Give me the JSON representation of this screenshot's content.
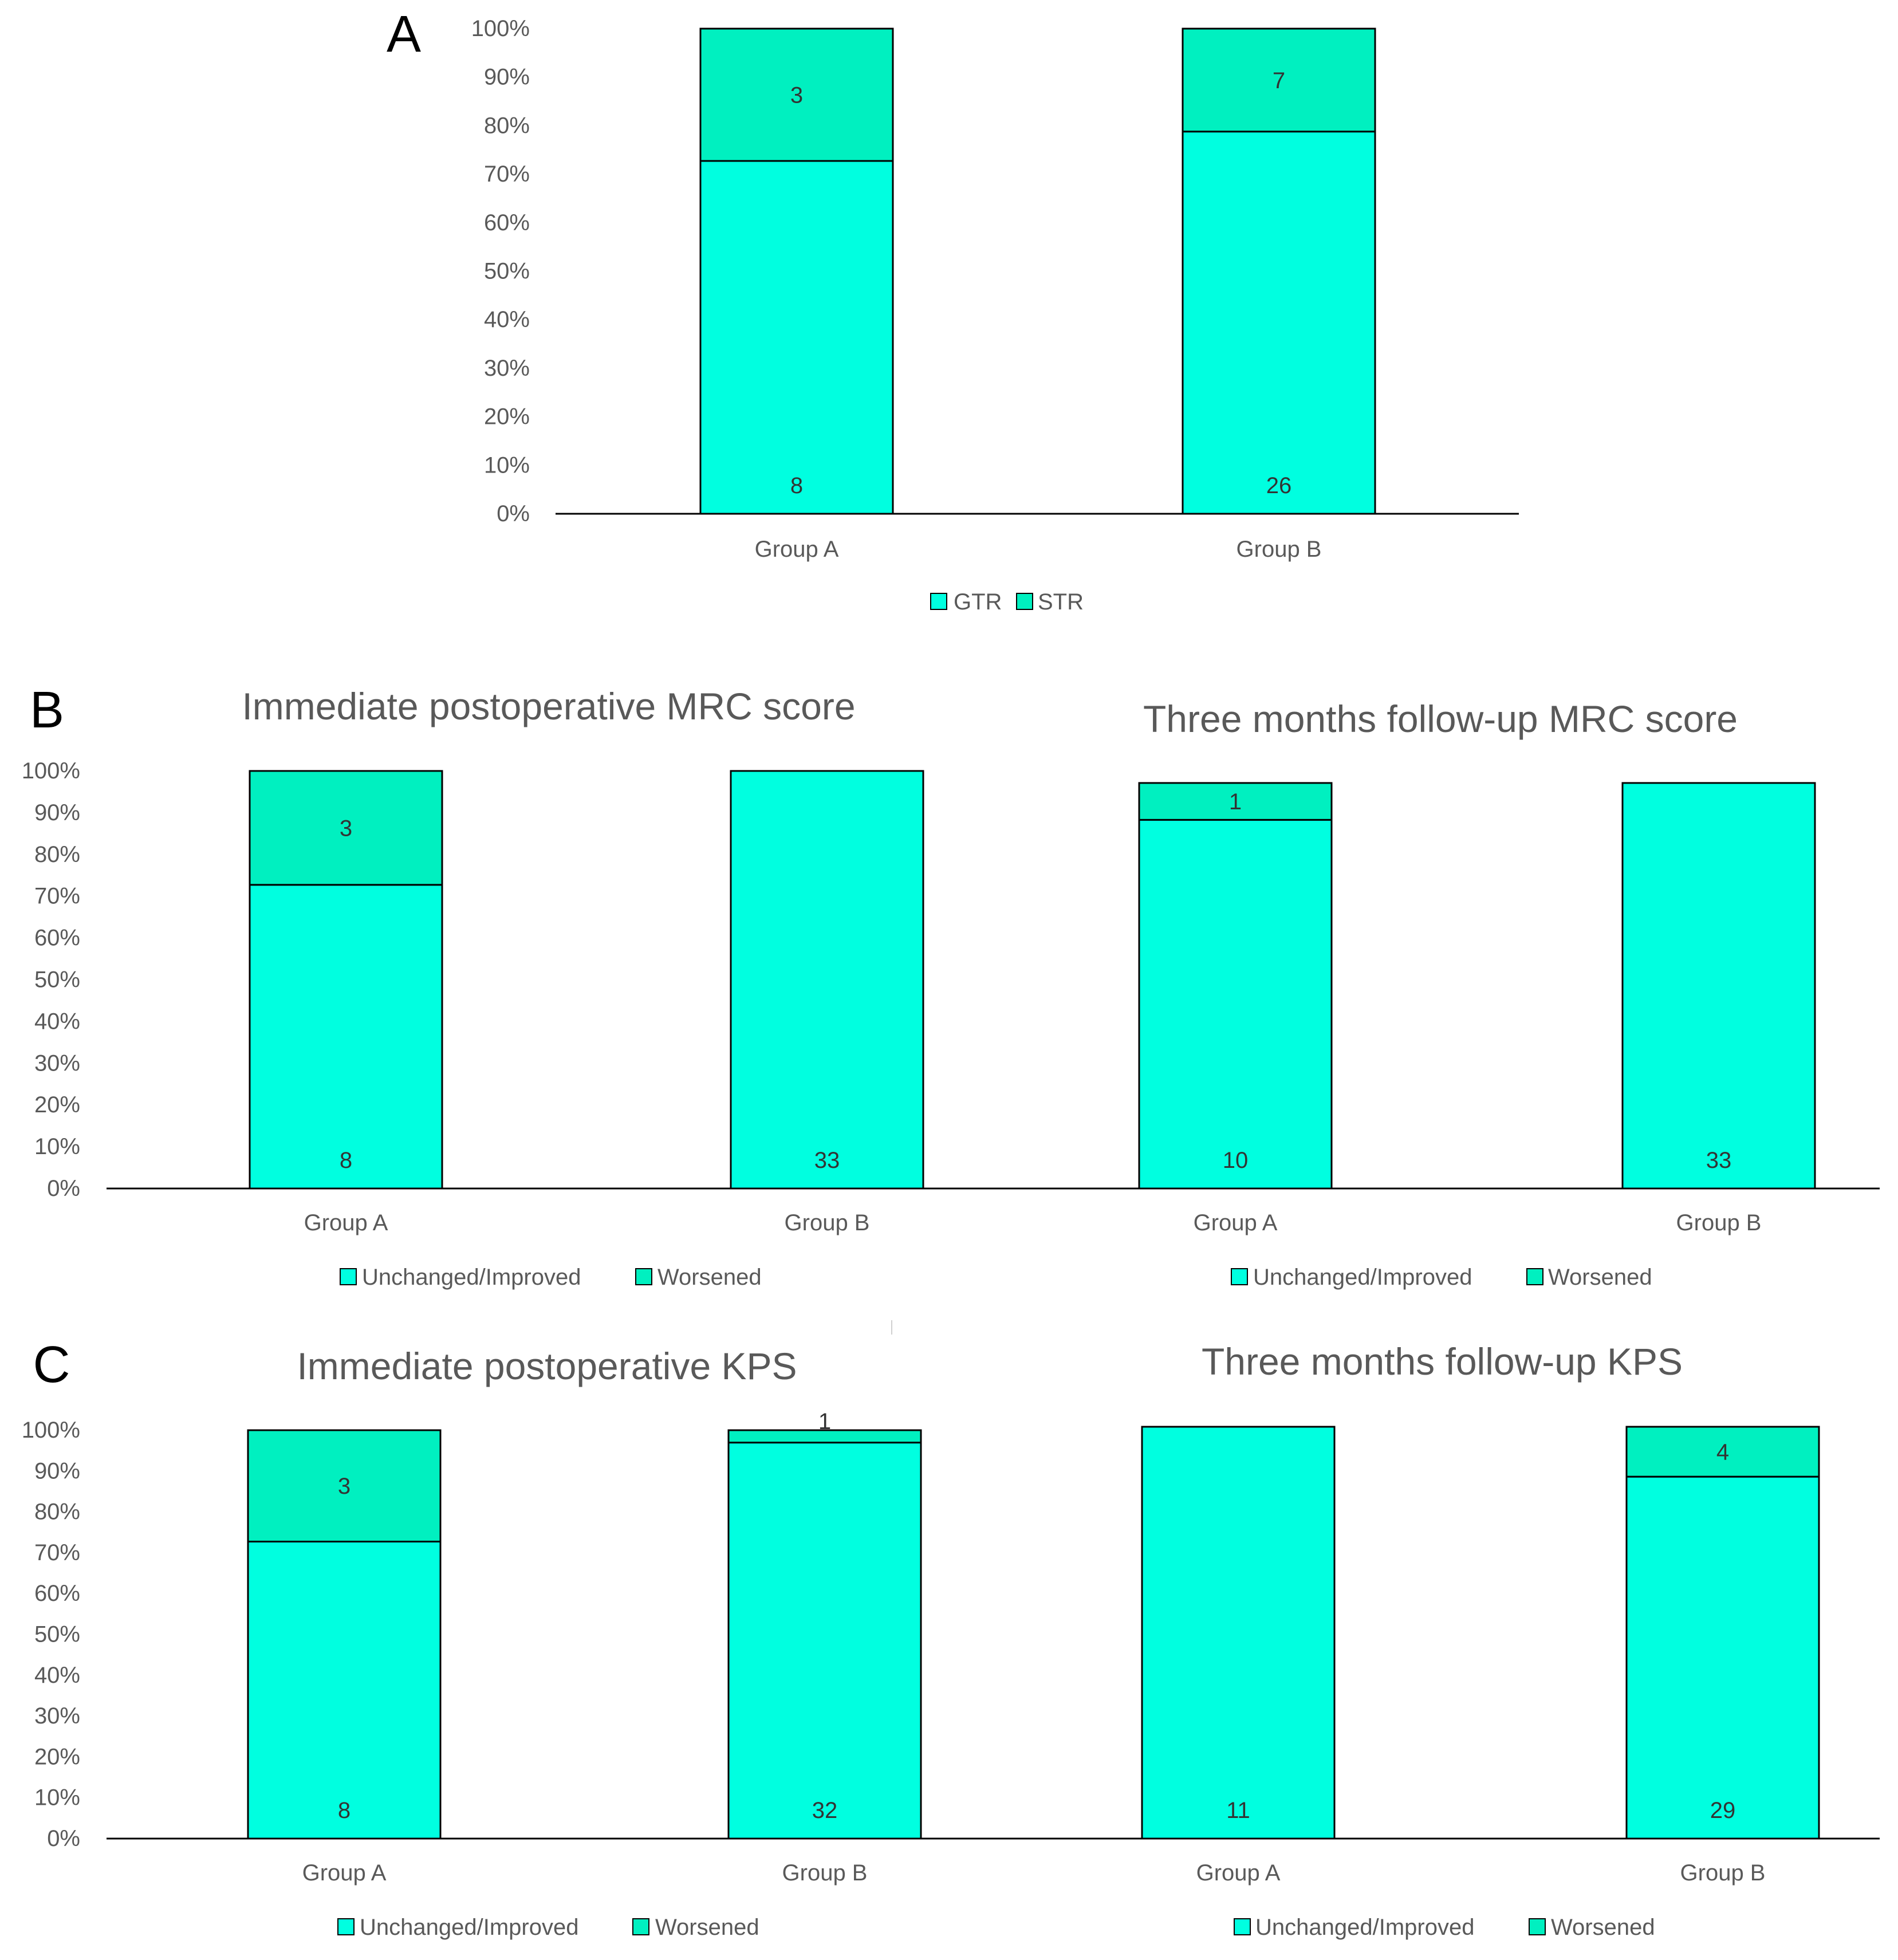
{
  "colors": {
    "primary": "#00ffe0",
    "secondary": "#00f0c0",
    "outline": "#000000",
    "axis": "#000000",
    "text": "#595959"
  },
  "chart_data": [
    {
      "panel": "A",
      "type": "bar",
      "stacked": true,
      "percent": true,
      "title": "",
      "categories": [
        "Group A",
        "Group B"
      ],
      "series": [
        {
          "name": "GTR",
          "values": [
            8,
            26
          ]
        },
        {
          "name": "STR",
          "values": [
            3,
            7
          ]
        }
      ],
      "labels": [
        [
          "8",
          "26"
        ],
        [
          "3",
          "7"
        ]
      ],
      "yticks": [
        "0%",
        "10%",
        "20%",
        "30%",
        "40%",
        "50%",
        "60%",
        "70%",
        "80%",
        "90%",
        "100%"
      ],
      "ylim": [
        0,
        100
      ],
      "legend": "bottom-center",
      "grid": false
    },
    {
      "panel": "B",
      "type": "bar",
      "stacked": true,
      "percent": true,
      "title": "Immediate postoperative MRC score",
      "categories": [
        "Group A",
        "Group B"
      ],
      "series": [
        {
          "name": "Unchanged/Improved",
          "values": [
            8,
            33
          ]
        },
        {
          "name": "Worsened",
          "values": [
            3,
            0
          ]
        }
      ],
      "labels": [
        [
          "8",
          "33"
        ],
        [
          "3",
          ""
        ]
      ],
      "yticks": [
        "0%",
        "10%",
        "20%",
        "30%",
        "40%",
        "50%",
        "60%",
        "70%",
        "80%",
        "90%",
        "100%"
      ],
      "ylim": [
        0,
        100
      ],
      "legend": "bottom-center",
      "grid": false
    },
    {
      "panel": "",
      "type": "bar",
      "stacked": true,
      "percent": true,
      "title": "Three months follow-up MRC score",
      "categories": [
        "Group A",
        "Group B"
      ],
      "series": [
        {
          "name": "Unchanged/Improved",
          "values": [
            10,
            33
          ]
        },
        {
          "name": "Worsened",
          "values": [
            1,
            0
          ]
        }
      ],
      "labels": [
        [
          "10",
          "33"
        ],
        [
          "1",
          ""
        ]
      ],
      "ylim": [
        0,
        100
      ],
      "legend": "bottom-center",
      "grid": false
    },
    {
      "panel": "C",
      "type": "bar",
      "stacked": true,
      "percent": true,
      "title": "Immediate postoperative KPS",
      "categories": [
        "Group A",
        "Group B"
      ],
      "series": [
        {
          "name": "Unchanged/Improved",
          "values": [
            8,
            32
          ]
        },
        {
          "name": "Worsened",
          "values": [
            3,
            1
          ]
        }
      ],
      "labels": [
        [
          "8",
          "32"
        ],
        [
          "3",
          "1"
        ]
      ],
      "yticks": [
        "0%",
        "10%",
        "20%",
        "30%",
        "40%",
        "50%",
        "60%",
        "70%",
        "80%",
        "90%",
        "100%"
      ],
      "ylim": [
        0,
        100
      ],
      "legend": "bottom-center",
      "grid": false
    },
    {
      "panel": "",
      "type": "bar",
      "stacked": true,
      "percent": true,
      "title": "Three months follow-up KPS",
      "categories": [
        "Group A",
        "Group B"
      ],
      "series": [
        {
          "name": "Unchanged/Improved",
          "values": [
            11,
            29
          ]
        },
        {
          "name": "Worsened",
          "values": [
            0,
            4
          ]
        }
      ],
      "labels": [
        [
          "11",
          "29"
        ],
        [
          "",
          "4"
        ]
      ],
      "ylim": [
        0,
        100
      ],
      "legend": "bottom-center",
      "grid": false
    }
  ]
}
